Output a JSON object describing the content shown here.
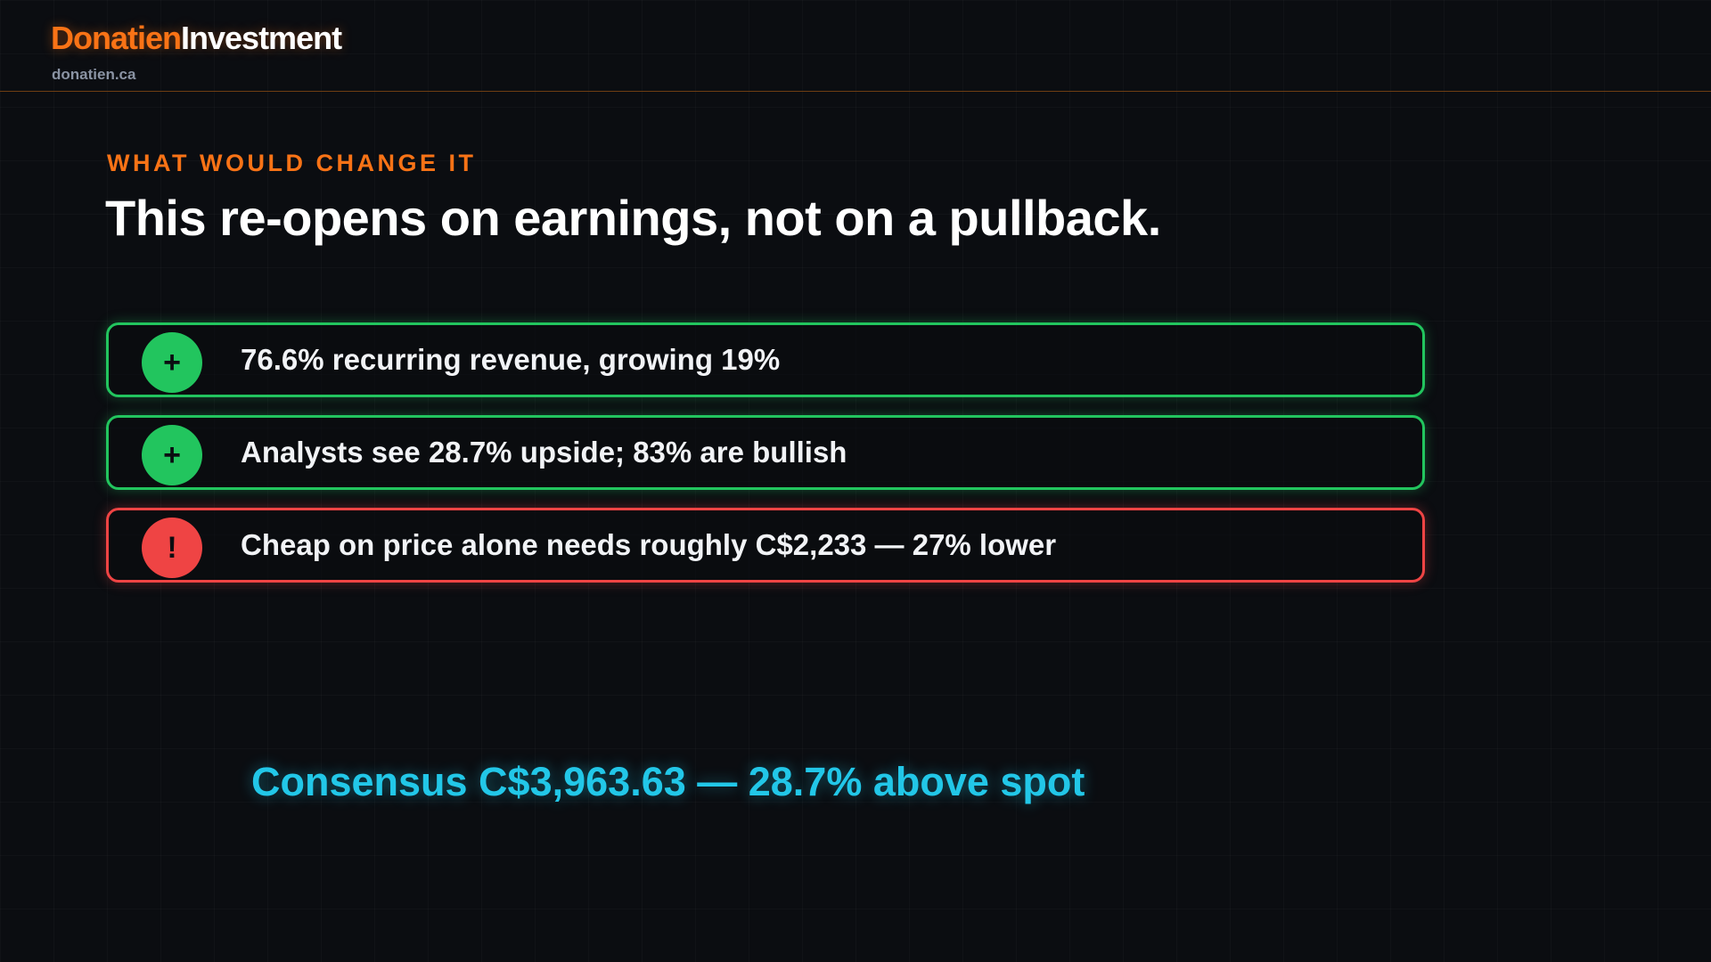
{
  "header": {
    "brand_first": "Donatien",
    "brand_second": "Investment",
    "domain": "donatien.ca"
  },
  "eyebrow": "WHAT WOULD CHANGE IT",
  "headline": "This re-opens on earnings, not on a pullback.",
  "items": [
    {
      "kind": "positive",
      "icon": "plus-icon",
      "symbol": "+",
      "text": "76.6% recurring revenue, growing 19%"
    },
    {
      "kind": "positive",
      "icon": "plus-icon",
      "symbol": "+",
      "text": "Analysts see 28.7% upside; 83% are bullish"
    },
    {
      "kind": "warning",
      "icon": "exclamation-icon",
      "symbol": "!",
      "text": "Cheap on price alone needs roughly C$2,233 — 27% lower"
    }
  ],
  "consensus": "Consensus C$3,963.63 — 28.7% above spot",
  "colors": {
    "accent": "#f97316",
    "positive": "#22c55e",
    "warning": "#ef4444",
    "consensus": "#22c7e8",
    "background": "#0b0d11"
  }
}
